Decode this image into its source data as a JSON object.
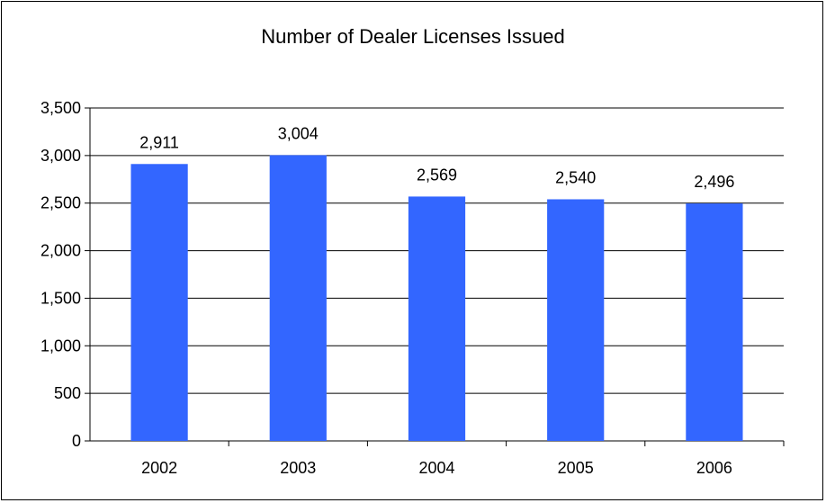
{
  "chart_data": {
    "type": "bar",
    "title": "Number of Dealer Licenses Issued",
    "xlabel": "",
    "ylabel": "",
    "categories": [
      "2002",
      "2003",
      "2004",
      "2005",
      "2006"
    ],
    "values": [
      2911,
      3004,
      2569,
      2540,
      2496
    ],
    "value_labels": [
      "2,911",
      "3,004",
      "2,569",
      "2,540",
      "2,496"
    ],
    "ylim": [
      0,
      3500
    ],
    "yticks": [
      0,
      500,
      1000,
      1500,
      2000,
      2500,
      3000,
      3500
    ],
    "ytick_labels": [
      "0",
      "500",
      "1,000",
      "1,500",
      "2,000",
      "2,500",
      "3,000",
      "3,500"
    ],
    "grid": true,
    "legend": "none",
    "bar_color": "#3366FF"
  }
}
